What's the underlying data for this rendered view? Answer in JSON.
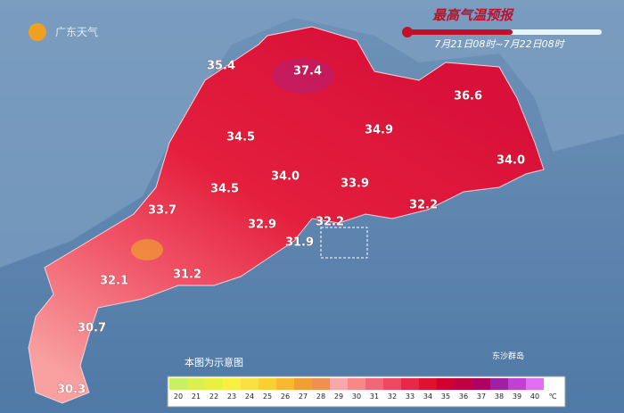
{
  "header": {
    "logo": "广东天气",
    "title": "最高气温预报",
    "period": "7月21日08时~7月22日08时"
  },
  "labels": [
    "35.4",
    "37.4",
    "36.6",
    "34.5",
    "34.9",
    "34.0",
    "34.0",
    "34.5",
    "33.9",
    "33.7",
    "32.9",
    "32.2",
    "32.2",
    "31.9",
    "32.1",
    "31.2",
    "30.7",
    "30.3"
  ],
  "note": "本图为示意图",
  "island": "东沙群岛",
  "legend": {
    "ticks": [
      20,
      21,
      22,
      23,
      24,
      25,
      26,
      27,
      28,
      29,
      30,
      31,
      32,
      33,
      34,
      35,
      36,
      37,
      38,
      39,
      40
    ],
    "unit": "℃",
    "colors": [
      "#c8f060",
      "#d8f050",
      "#e8f040",
      "#f8f040",
      "#f8e040",
      "#f8d030",
      "#f8b830",
      "#f0a030",
      "#f09050",
      "#f8a8a8",
      "#f88888",
      "#f06878",
      "#f04860",
      "#e82848",
      "#e01030",
      "#d00030",
      "#c00040",
      "#b00060",
      "#a020a0",
      "#c040d0",
      "#e070f0"
    ]
  }
}
